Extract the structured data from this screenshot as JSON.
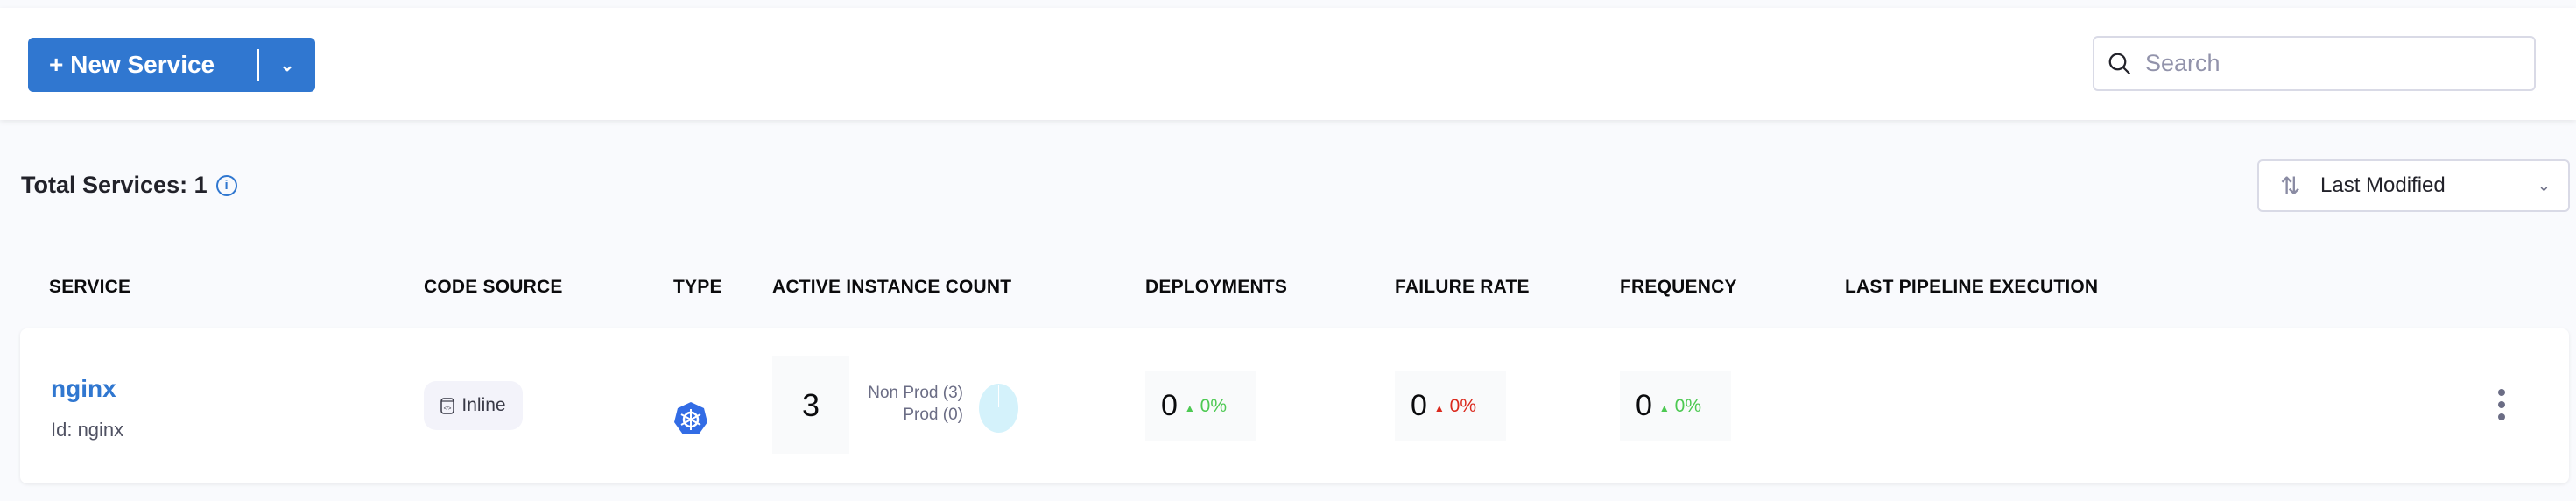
{
  "toolbar": {
    "new_service_label": "+ New Service",
    "search_placeholder": "Search"
  },
  "summary": {
    "total_label": "Total Services: 1",
    "sort_label": "Last Modified"
  },
  "table": {
    "headers": [
      "SERVICE",
      "CODE SOURCE",
      "TYPE",
      "ACTIVE INSTANCE COUNT",
      "DEPLOYMENTS",
      "FAILURE RATE",
      "FREQUENCY",
      "LAST PIPELINE EXECUTION"
    ],
    "rows": [
      {
        "name": "nginx",
        "id": "Id: nginx",
        "code_source": "Inline",
        "type_icon": "kubernetes-icon",
        "instance_count": "3",
        "non_prod": "Non Prod (3)",
        "prod": "Prod (0)",
        "deployments": {
          "value": "0",
          "change": "0%",
          "color": "#4dc952"
        },
        "failure_rate": {
          "value": "0",
          "change": "0%",
          "color": "#da291d"
        },
        "frequency": {
          "value": "0",
          "change": "0%",
          "color": "#4dc952"
        }
      }
    ]
  },
  "colors": {
    "accent": "#3077d0",
    "pie": "#d4f2fb"
  }
}
